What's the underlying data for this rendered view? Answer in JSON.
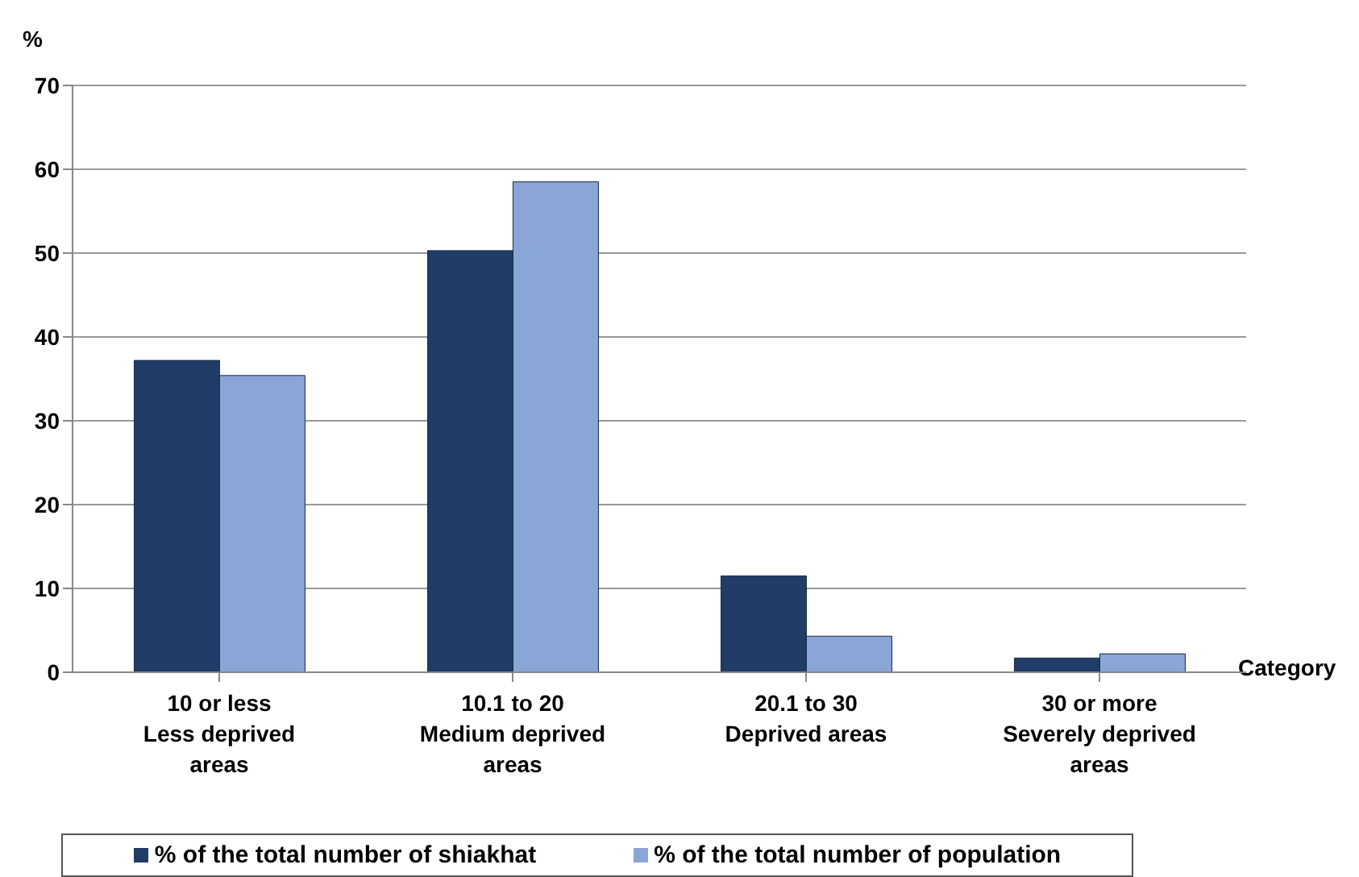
{
  "chart_data": {
    "type": "bar",
    "ylabel": "%",
    "xlabel": "Category",
    "categories": [
      "10 or less\nLess deprived\nareas",
      "10.1 to 20\nMedium deprived\nareas",
      "20.1 to 30\nDeprived areas",
      "30 or more\nSeverely deprived\nareas"
    ],
    "series": [
      {
        "name": "% of the total number of shiakhat",
        "color": "#1f3d66",
        "values": [
          37.2,
          50.3,
          11.5,
          1.7
        ]
      },
      {
        "name": "% of the total number of population",
        "color": "#8aa6d6",
        "values": [
          35.4,
          58.5,
          4.3,
          2.2
        ]
      }
    ],
    "ylim": [
      0,
      70
    ],
    "yticks": [
      0,
      10,
      20,
      30,
      40,
      50,
      60,
      70
    ],
    "grid": "y",
    "legend": "bottom"
  }
}
